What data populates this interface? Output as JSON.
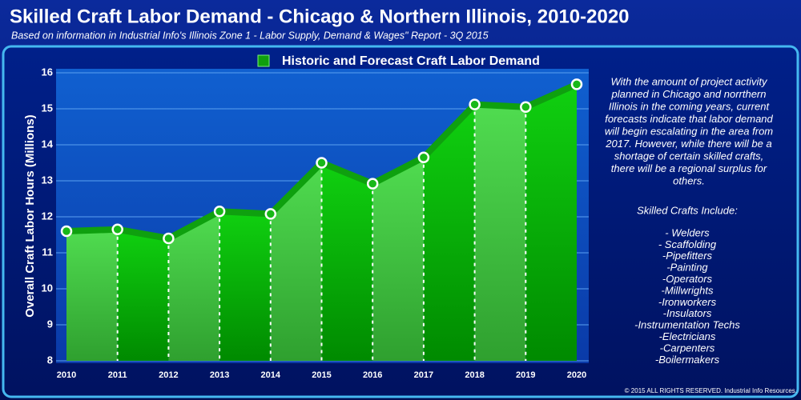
{
  "chart_data": {
    "type": "area",
    "title": "Skilled Craft Labor Demand - Chicago & Northern Illinois, 2010-2020",
    "subtitle": "Based on information in Industrial Info's Illinois Zone 1 - Labor Supply, Demand & Wages\" Report - 3Q 2015",
    "y_label": "Overall Craft Labor Hours (Millions)",
    "categories": [
      "2010",
      "2011",
      "2012",
      "2013",
      "2014",
      "2015",
      "2016",
      "2017",
      "2018",
      "2019",
      "2020"
    ],
    "series": [
      {
        "name": "Historic and Forecast Craft Labor Demand",
        "color": "#0fa00f",
        "values": [
          11.6,
          11.65,
          11.4,
          12.15,
          12.08,
          13.5,
          12.92,
          13.65,
          15.12,
          15.05,
          15.68
        ]
      }
    ],
    "ylim": [
      8,
      16
    ],
    "yticks": [
      8,
      9,
      10,
      11,
      12,
      13,
      14,
      15,
      16
    ],
    "grid": true,
    "legend": "top",
    "note_lines": [
      "With the amount of project activity",
      "planned in Chicago and norrthern",
      "Illinois in the coming years, current",
      "forecasts indicate that labor demand",
      "will begin escalating in the area from",
      "2017.  However, while there will be a",
      "shortage of certain skilled crafts,",
      "there will be a regional surplus for",
      "others."
    ],
    "crafts_heading": "Skilled Crafts Include:",
    "crafts": [
      "- Welders",
      "- Scaffolding",
      "-Pipefitters",
      "-Painting",
      "-Operators",
      "-Millwrights",
      "-Ironworkers",
      "-Insulators",
      "-Instrumentation Techs",
      "-Electricians",
      "-Carpenters",
      "-Boilermakers"
    ],
    "copyright": "© 2015 ALL RIGHTS RESERVED. Industrial Info Resources."
  }
}
